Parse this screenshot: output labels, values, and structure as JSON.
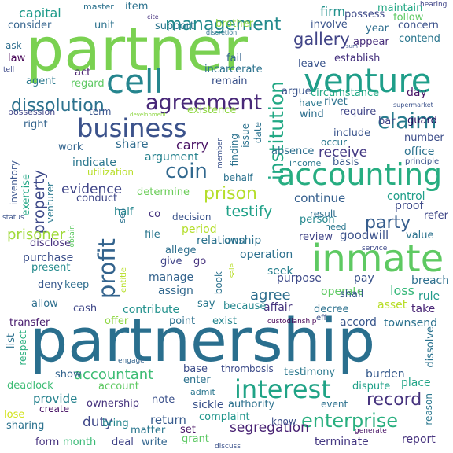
{
  "words": [
    {
      "text": "partnership",
      "color": "#2a6f8e"
    },
    {
      "text": "partner",
      "color": "#7ad151"
    },
    {
      "text": "inmate",
      "color": "#5ec962"
    },
    {
      "text": "accounting",
      "color": "#27ad81"
    },
    {
      "text": "venture",
      "color": "#1f9e89"
    },
    {
      "text": "cell",
      "color": "#25858e"
    },
    {
      "text": "business",
      "color": "#3b528b"
    },
    {
      "text": "interest",
      "color": "#20a386"
    },
    {
      "text": "agreement",
      "color": "#482878"
    },
    {
      "text": "profit",
      "color": "#33638d"
    },
    {
      "text": "claim",
      "color": "#287c8e"
    },
    {
      "text": "enterprise",
      "color": "#29af7f"
    },
    {
      "text": "institution",
      "color": "#22a884"
    },
    {
      "text": "coin",
      "color": "#31688e"
    },
    {
      "text": "prison",
      "color": "#b5de2b"
    },
    {
      "text": "property",
      "color": "#3e4a89"
    },
    {
      "text": "management",
      "color": "#238a8d"
    },
    {
      "text": "dissolution",
      "color": "#2c728e"
    },
    {
      "text": "gallery",
      "color": "#414487"
    },
    {
      "text": "party",
      "color": "#365d8d"
    },
    {
      "text": "record",
      "color": "#46337e"
    },
    {
      "text": "prisoner",
      "color": "#a0da39"
    },
    {
      "text": "testify",
      "color": "#1fa188"
    },
    {
      "text": "agree",
      "color": "#2e6e8e"
    },
    {
      "text": "accountant",
      "color": "#3dbc74"
    },
    {
      "text": "capital",
      "color": "#1e9b8a"
    },
    {
      "text": "evidence",
      "color": "#404688"
    },
    {
      "text": "receive",
      "color": "#443983"
    },
    {
      "text": "firm",
      "color": "#21918c"
    },
    {
      "text": "segregation",
      "color": "#482173"
    },
    {
      "text": "duty",
      "color": "#3f4889"
    },
    {
      "text": "loss",
      "color": "#35b779"
    },
    {
      "text": "operation",
      "color": "#2d708e"
    },
    {
      "text": "goodwill",
      "color": "#3b528b"
    },
    {
      "text": "share",
      "color": "#2f6c8e"
    },
    {
      "text": "carry",
      "color": "#471063"
    },
    {
      "text": "continue",
      "color": "#355f8d"
    },
    {
      "text": "argument",
      "color": "#26828e"
    },
    {
      "text": "return",
      "color": "#375b8d"
    },
    {
      "text": "provide",
      "color": "#26828e"
    },
    {
      "text": "manage",
      "color": "#33638d"
    },
    {
      "text": "assign",
      "color": "#31688e"
    },
    {
      "text": "contribute",
      "color": "#21918c"
    },
    {
      "text": "affair",
      "color": "#46337e"
    },
    {
      "text": "operate",
      "color": "#5ec962"
    },
    {
      "text": "purpose",
      "color": "#3e4a89"
    },
    {
      "text": "testimony",
      "color": "#2a788e"
    },
    {
      "text": "burden",
      "color": "#375b8d"
    },
    {
      "text": "dispute",
      "color": "#1fa088"
    },
    {
      "text": "place",
      "color": "#20a486"
    },
    {
      "text": "rule",
      "color": "#1f9a8a"
    },
    {
      "text": "breach",
      "color": "#2e6f8e"
    },
    {
      "text": "take",
      "color": "#482475"
    },
    {
      "text": "accord",
      "color": "#39568c"
    },
    {
      "text": "townsend",
      "color": "#2c728e"
    },
    {
      "text": "asset",
      "color": "#b8de29"
    },
    {
      "text": "decree",
      "color": "#2c718e"
    },
    {
      "text": "shall",
      "color": "#38598c"
    },
    {
      "text": "pay",
      "color": "#3a538b"
    },
    {
      "text": "seek",
      "color": "#27808e"
    },
    {
      "text": "review",
      "color": "#414487"
    },
    {
      "text": "person",
      "color": "#24878e"
    },
    {
      "text": "relationship",
      "color": "#2c728e"
    },
    {
      "text": "period",
      "color": "#b4de2c"
    },
    {
      "text": "determine",
      "color": "#6ccd5a"
    },
    {
      "text": "indicate",
      "color": "#2a768e"
    },
    {
      "text": "work",
      "color": "#32648e"
    },
    {
      "text": "conduct",
      "color": "#3f4788"
    },
    {
      "text": "exercise",
      "color": "#21a685"
    },
    {
      "text": "purchase",
      "color": "#3c508b"
    },
    {
      "text": "disclose",
      "color": "#46307e"
    },
    {
      "text": "present",
      "color": "#238a8d"
    },
    {
      "text": "deny",
      "color": "#38588c"
    },
    {
      "text": "keep",
      "color": "#2e6e8e"
    },
    {
      "text": "allow",
      "color": "#2e6f8e"
    },
    {
      "text": "cash",
      "color": "#3f4788"
    },
    {
      "text": "transfer",
      "color": "#481b6d"
    },
    {
      "text": "list",
      "color": "#2d718e"
    },
    {
      "text": "respect",
      "color": "#29af7f"
    },
    {
      "text": "show",
      "color": "#33638d"
    },
    {
      "text": "deadlock",
      "color": "#3dbc74"
    },
    {
      "text": "account",
      "color": "#5ec962"
    },
    {
      "text": "ownership",
      "color": "#46337e"
    },
    {
      "text": "note",
      "color": "#3b518b"
    },
    {
      "text": "lose",
      "color": "#d2e21b"
    },
    {
      "text": "create",
      "color": "#471164"
    },
    {
      "text": "sharing",
      "color": "#2c728e"
    },
    {
      "text": "form",
      "color": "#46327e"
    },
    {
      "text": "month",
      "color": "#3aba76"
    },
    {
      "text": "bring",
      "color": "#24868e"
    },
    {
      "text": "matter",
      "color": "#2a768e"
    },
    {
      "text": "deal",
      "color": "#404588"
    },
    {
      "text": "write",
      "color": "#32658e"
    },
    {
      "text": "grant",
      "color": "#5cc863"
    },
    {
      "text": "set",
      "color": "#471365"
    },
    {
      "text": "complaint",
      "color": "#1f958b"
    },
    {
      "text": "sickle",
      "color": "#3a538b"
    },
    {
      "text": "authority",
      "color": "#2c718e"
    },
    {
      "text": "know",
      "color": "#3c4f8a"
    },
    {
      "text": "enter",
      "color": "#2c728e"
    },
    {
      "text": "admit",
      "color": "#2a768e"
    },
    {
      "text": "base",
      "color": "#3d4d8a"
    },
    {
      "text": "thrombosis",
      "color": "#3e4c8a"
    },
    {
      "text": "event",
      "color": "#2d718e"
    },
    {
      "text": "terminate",
      "color": "#453882"
    },
    {
      "text": "report",
      "color": "#46327e"
    },
    {
      "text": "reason",
      "color": "#2a778e"
    },
    {
      "text": "generate",
      "color": "#471365"
    },
    {
      "text": "discuss",
      "color": "#3b528b"
    },
    {
      "text": "point",
      "color": "#2d708e"
    },
    {
      "text": "exist",
      "color": "#25858e"
    },
    {
      "text": "offer",
      "color": "#8fd744"
    },
    {
      "text": "say",
      "color": "#2a788e"
    },
    {
      "text": "because",
      "color": "#24878e"
    },
    {
      "text": "allege",
      "color": "#2e6f8e"
    },
    {
      "text": "give",
      "color": "#404588"
    },
    {
      "text": "go",
      "color": "#46327e"
    },
    {
      "text": "file",
      "color": "#2a768e"
    },
    {
      "text": "decision",
      "color": "#3a538b"
    },
    {
      "text": "half",
      "color": "#24868e"
    },
    {
      "text": "co",
      "color": "#46337e"
    },
    {
      "text": "own",
      "color": "#2c728e"
    },
    {
      "text": "need",
      "color": "#2a768e"
    },
    {
      "text": "result",
      "color": "#2e6e8e"
    },
    {
      "text": "proof",
      "color": "#3e4a89"
    },
    {
      "text": "refer",
      "color": "#3f4788"
    },
    {
      "text": "control",
      "color": "#1f9e89"
    },
    {
      "text": "value",
      "color": "#2c728e"
    },
    {
      "text": "office",
      "color": "#2c728e"
    },
    {
      "text": "principle",
      "color": "#3b528b"
    },
    {
      "text": "number",
      "color": "#3d4e8a"
    },
    {
      "text": "include",
      "color": "#3a548c"
    },
    {
      "text": "occur",
      "color": "#2a788e"
    },
    {
      "text": "absence",
      "color": "#2e6f8e"
    },
    {
      "text": "basis",
      "color": "#38588c"
    },
    {
      "text": "income",
      "color": "#2a788e"
    },
    {
      "text": "bar",
      "color": "#414487"
    },
    {
      "text": "require",
      "color": "#404588"
    },
    {
      "text": "guard",
      "color": "#2a0f60"
    },
    {
      "text": "supermarket",
      "color": "#3b528b"
    },
    {
      "text": "have",
      "color": "#2a788e"
    },
    {
      "text": "rivet",
      "color": "#2c728e"
    },
    {
      "text": "wind",
      "color": "#2e6f8e"
    },
    {
      "text": "argue",
      "color": "#3a548c"
    },
    {
      "text": "circumstance",
      "color": "#22a884"
    },
    {
      "text": "day",
      "color": "#471365"
    },
    {
      "text": "leave",
      "color": "#3a548c"
    },
    {
      "text": "establish",
      "color": "#46327e"
    },
    {
      "text": "contend",
      "color": "#2a768e"
    },
    {
      "text": "appear",
      "color": "#472d7b"
    },
    {
      "text": "year",
      "color": "#2e6e8e"
    },
    {
      "text": "concern",
      "color": "#3b518b"
    },
    {
      "text": "maintain",
      "color": "#22a884"
    },
    {
      "text": "hearing",
      "color": "#404588"
    },
    {
      "text": "follow",
      "color": "#5ec962"
    },
    {
      "text": "possess",
      "color": "#3e4a89"
    },
    {
      "text": "involve",
      "color": "#3a548c"
    },
    {
      "text": "sum",
      "color": "#3b528b"
    },
    {
      "text": "master",
      "color": "#2c728e"
    },
    {
      "text": "item",
      "color": "#2c728e"
    },
    {
      "text": "cite",
      "color": "#46327e"
    },
    {
      "text": "brother",
      "color": "#8fd744"
    },
    {
      "text": "discretion",
      "color": "#2c728e"
    },
    {
      "text": "unit",
      "color": "#2c728e"
    },
    {
      "text": "support",
      "color": "#2a768e"
    },
    {
      "text": "consider",
      "color": "#33638d"
    },
    {
      "text": "ask",
      "color": "#2e6e8e"
    },
    {
      "text": "law",
      "color": "#440154"
    },
    {
      "text": "tell",
      "color": "#3e4a89"
    },
    {
      "text": "agent",
      "color": "#2a788e"
    },
    {
      "text": "act",
      "color": "#481f70"
    },
    {
      "text": "regard",
      "color": "#5ec962"
    },
    {
      "text": "possession",
      "color": "#404588"
    },
    {
      "text": "term",
      "color": "#3a548c"
    },
    {
      "text": "fail",
      "color": "#33638d"
    },
    {
      "text": "incarcerate",
      "color": "#2c728e"
    },
    {
      "text": "remain",
      "color": "#3b528b"
    },
    {
      "text": "development",
      "color": "#8fd744"
    },
    {
      "text": "existence",
      "color": "#8fd744"
    },
    {
      "text": "right",
      "color": "#33638d"
    },
    {
      "text": "finding",
      "color": "#2c728e"
    },
    {
      "text": "member",
      "color": "#3b528b"
    },
    {
      "text": "issue",
      "color": "#2c728e"
    },
    {
      "text": "date",
      "color": "#2c728e"
    },
    {
      "text": "behalf",
      "color": "#2c728e"
    },
    {
      "text": "utilization",
      "color": "#b8de29"
    },
    {
      "text": "inventory",
      "color": "#3a548c"
    },
    {
      "text": "venturer",
      "color": "#2a788e"
    },
    {
      "text": "status",
      "color": "#3b528b"
    },
    {
      "text": "obtain",
      "color": "#5ec962"
    },
    {
      "text": "sell",
      "color": "#2c728e"
    },
    {
      "text": "entitle",
      "color": "#b8de29"
    },
    {
      "text": "book",
      "color": "#2c728e"
    },
    {
      "text": "sale",
      "color": "#b8de29"
    },
    {
      "text": "service",
      "color": "#3e4a89"
    },
    {
      "text": "custodianship",
      "color": "#440154"
    },
    {
      "text": "eff",
      "color": "#3b528b"
    },
    {
      "text": "engage",
      "color": "#33638d"
    },
    {
      "text": "dissolve",
      "color": "#2c728e"
    }
  ]
}
